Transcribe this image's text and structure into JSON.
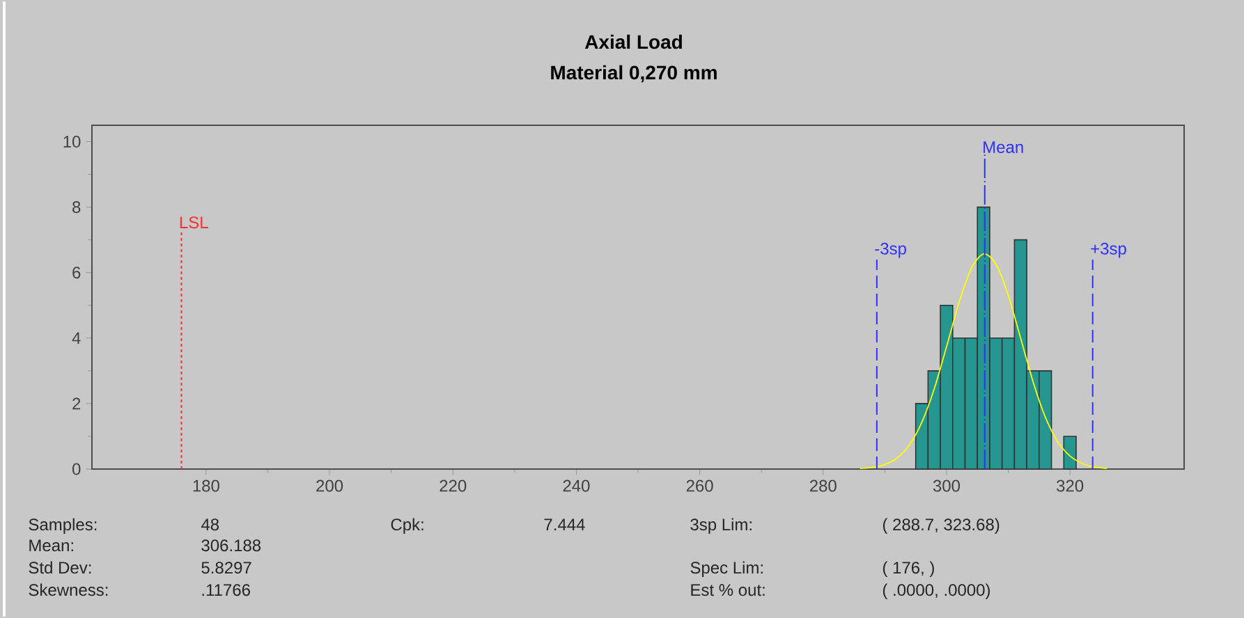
{
  "chart_data": {
    "type": "histogram",
    "title": "Axial Load",
    "subtitle": "Material 0,270 mm",
    "series": [
      {
        "color": "#269690",
        "bins": [
          295,
          297,
          299,
          301,
          303,
          305,
          307,
          309,
          311,
          313,
          315,
          317,
          319,
          321
        ],
        "values": [
          2,
          3,
          5,
          4,
          4,
          8,
          4,
          4,
          7,
          3,
          3,
          0,
          1
        ]
      },
      {
        "type": "line",
        "color": "#ffff00",
        "x": [
          286,
          288,
          290,
          292,
          294,
          296,
          298,
          300,
          302,
          304,
          306,
          308,
          310,
          312,
          314,
          316,
          318,
          320,
          322,
          324,
          326
        ],
        "values": [
          0.02,
          0.05,
          0.14,
          0.34,
          0.74,
          1.43,
          2.45,
          3.74,
          5.07,
          6.12,
          6.57,
          6.26,
          5.31,
          4.0,
          2.68,
          1.59,
          0.84,
          0.4,
          0.17,
          0.06,
          0.02
        ]
      }
    ],
    "xlim": [
      161.5,
      338.5
    ],
    "ylim": [
      0,
      10.5
    ],
    "xticks": [
      180,
      200,
      220,
      240,
      260,
      280,
      300,
      320
    ],
    "yticks": [
      0,
      2,
      4,
      6,
      8,
      10
    ],
    "ref_lines": [
      {
        "axis": "x",
        "value": 176,
        "label": "LSL",
        "color": "#ff3030",
        "line_style": "dotted"
      },
      {
        "axis": "x",
        "value": 288.7,
        "label": "-3sp",
        "color": "#3030ff",
        "line_style": "dashed"
      },
      {
        "axis": "x",
        "value": 306.188,
        "label": "Mean",
        "color": "#3030ff",
        "line_style": "dashdot"
      },
      {
        "axis": "x",
        "value": 323.68,
        "label": "+3sp",
        "color": "#3030ff",
        "line_style": "dashed"
      }
    ],
    "annotations": [
      "Samples:",
      "48",
      "Cpk:",
      "7.444",
      "3sp Lim:",
      "( 288.7,   323.68)",
      "Mean:",
      "306.188",
      "Std Dev:",
      "5.8297",
      "Spec Lim:",
      "( 176,   )",
      "Skewness:",
      ".11766",
      "Est % out:",
      "( .0000,   .0000)"
    ]
  }
}
